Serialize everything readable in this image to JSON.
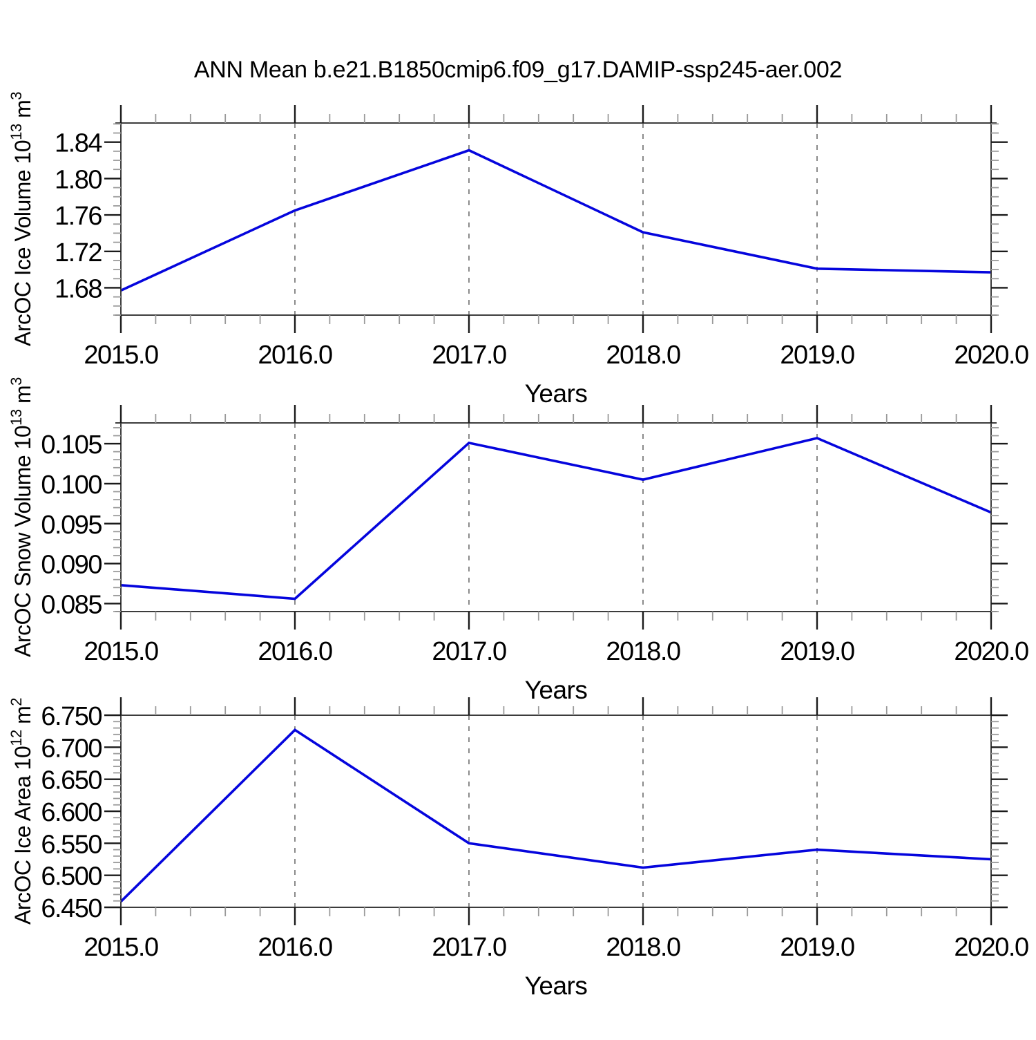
{
  "title": "ANN Mean b.e21.B1850cmip6.f09_g17.DAMIP-ssp245-aer.002",
  "line_color": "#0505dd",
  "grid_color": "#8a8a8a",
  "chart_data": [
    {
      "type": "line",
      "name": "arcoc-ice-volume",
      "ylabel": "ArcOC Ice Volume 10^13 m^3",
      "ylabel_parts": [
        [
          "ArcOC Ice Volume 10",
          "b"
        ],
        [
          "13",
          "s"
        ],
        [
          " m",
          "b"
        ],
        [
          "3",
          "s"
        ]
      ],
      "xlabel": "Years",
      "x": [
        2015.0,
        2016.0,
        2017.0,
        2018.0,
        2019.0,
        2020.0
      ],
      "values": [
        1.677,
        1.765,
        1.831,
        1.741,
        1.701,
        1.697
      ],
      "xlim": [
        2015.0,
        2020.0
      ],
      "ylim": [
        1.65,
        1.861
      ],
      "x_tick_labels": [
        "2015.0",
        "2016.0",
        "2017.0",
        "2018.0",
        "2019.0",
        "2020.0"
      ],
      "yticks": [
        1.68,
        1.72,
        1.76,
        1.8,
        1.84
      ],
      "ytick_labels": [
        "1.68",
        "1.72",
        "1.76",
        "1.80",
        "1.84"
      ],
      "y_minor_step": 0.01,
      "x_minor_step": 0.2,
      "gridlines_x": [
        2016.0,
        2017.0,
        2018.0,
        2019.0
      ],
      "grid": "vertical-dashed",
      "legend": "none"
    },
    {
      "type": "line",
      "name": "arcoc-snow-volume",
      "ylabel": "ArcOC Snow Volume 10^13 m^3",
      "ylabel_parts": [
        [
          "ArcOC Snow Volume 10",
          "b"
        ],
        [
          "13",
          "s"
        ],
        [
          " m",
          "b"
        ],
        [
          "3",
          "s"
        ]
      ],
      "xlabel": "Years",
      "x": [
        2015.0,
        2016.0,
        2017.0,
        2018.0,
        2019.0,
        2020.0
      ],
      "values": [
        0.0873,
        0.0856,
        0.1051,
        0.1005,
        0.1057,
        0.0964
      ],
      "xlim": [
        2015.0,
        2020.0
      ],
      "ylim": [
        0.084,
        0.1076
      ],
      "x_tick_labels": [
        "2015.0",
        "2016.0",
        "2017.0",
        "2018.0",
        "2019.0",
        "2020.0"
      ],
      "yticks": [
        0.085,
        0.09,
        0.095,
        0.1,
        0.105
      ],
      "ytick_labels": [
        "0.085",
        "0.090",
        "0.095",
        "0.100",
        "0.105"
      ],
      "y_minor_step": 0.001,
      "x_minor_step": 0.2,
      "gridlines_x": [
        2016.0,
        2017.0,
        2018.0,
        2019.0
      ],
      "grid": "vertical-dashed",
      "legend": "none"
    },
    {
      "type": "line",
      "name": "arcoc-ice-area",
      "ylabel": "ArcOC Ice Area 10^12 m^2",
      "ylabel_parts": [
        [
          "ArcOC Ice Area 10",
          "b"
        ],
        [
          "12",
          "s"
        ],
        [
          " m",
          "b"
        ],
        [
          "2",
          "s"
        ]
      ],
      "xlabel": "Years",
      "x": [
        2015.0,
        2016.0,
        2017.0,
        2018.0,
        2019.0,
        2020.0
      ],
      "values": [
        6.459,
        6.727,
        6.55,
        6.512,
        6.54,
        6.525
      ],
      "xlim": [
        2015.0,
        2020.0
      ],
      "ylim": [
        6.45,
        6.75
      ],
      "x_tick_labels": [
        "2015.0",
        "2016.0",
        "2017.0",
        "2018.0",
        "2019.0",
        "2020.0"
      ],
      "yticks": [
        6.45,
        6.5,
        6.55,
        6.6,
        6.65,
        6.7,
        6.75
      ],
      "ytick_labels": [
        "6.450",
        "6.500",
        "6.550",
        "6.600",
        "6.650",
        "6.700",
        "6.750"
      ],
      "y_minor_step": 0.01,
      "x_minor_step": 0.2,
      "gridlines_x": [
        2016.0,
        2017.0,
        2018.0,
        2019.0
      ],
      "grid": "vertical-dashed",
      "legend": "none"
    }
  ]
}
